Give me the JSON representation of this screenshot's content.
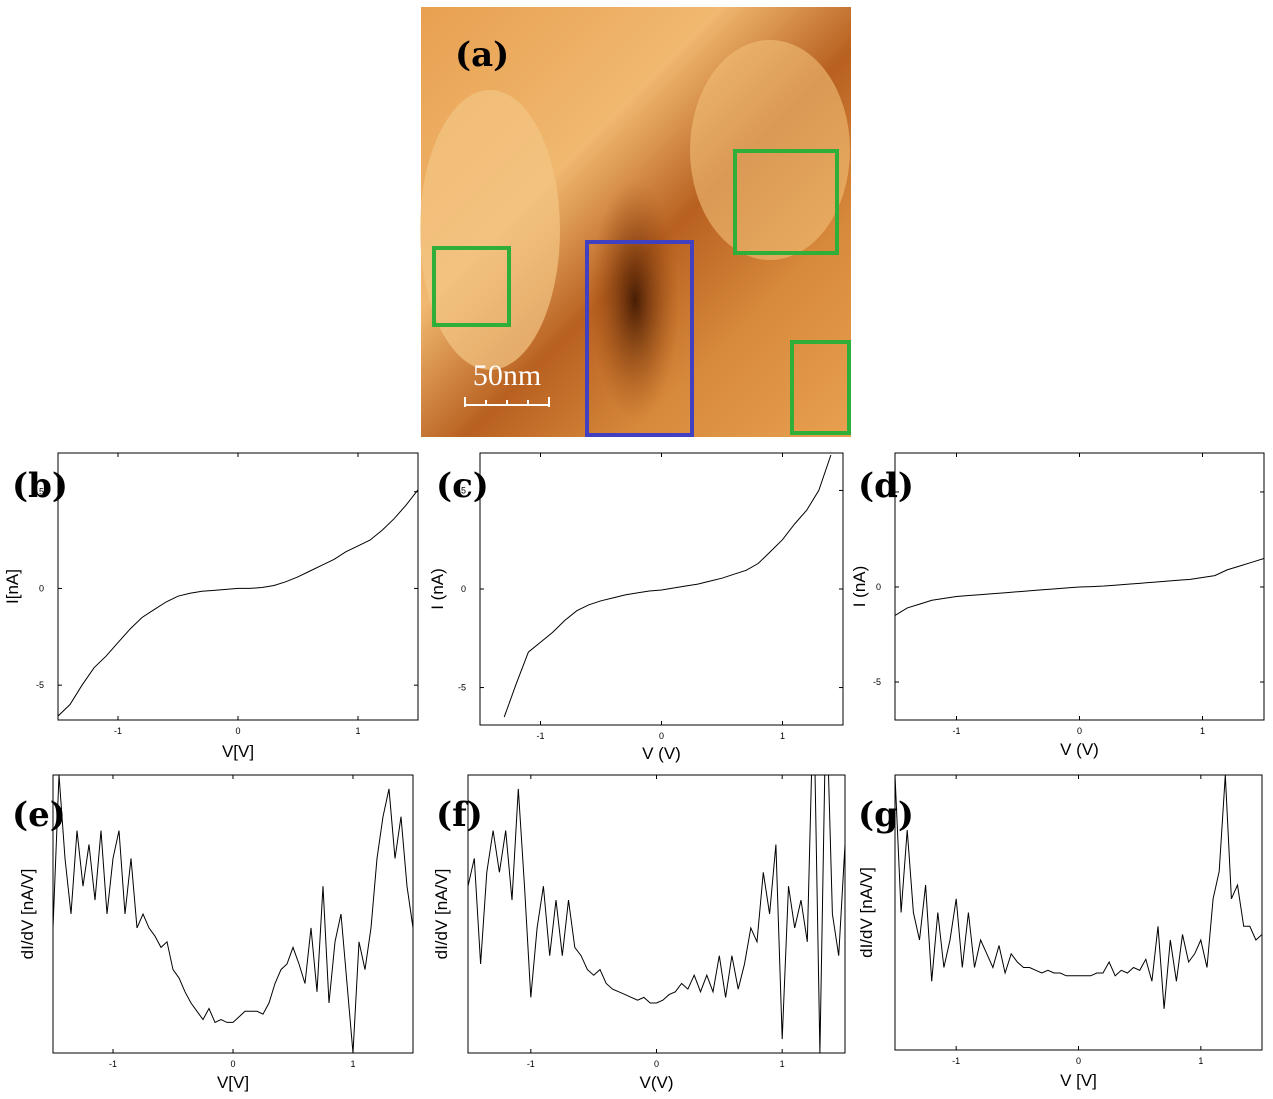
{
  "image": {
    "label": "(a)",
    "scale_bar": "50nm"
  },
  "chart_data": [
    {
      "type": "line",
      "label": "(b)",
      "x_label": "V[V]",
      "y_label": "I[nA]",
      "xlim": [
        -1.5,
        1.5
      ],
      "xticks": [
        -1,
        0,
        1
      ],
      "ylim": [
        -6.8,
        7
      ],
      "yticks": [
        -5,
        0,
        5
      ],
      "series": [
        {
          "color": "#000000",
          "x": [
            -1.5,
            -1.4,
            -1.3,
            -1.2,
            -1.1,
            -1.0,
            -0.9,
            -0.8,
            -0.7,
            -0.6,
            -0.5,
            -0.4,
            -0.3,
            -0.2,
            -0.1,
            0,
            0.1,
            0.2,
            0.3,
            0.4,
            0.5,
            0.6,
            0.7,
            0.8,
            0.9,
            1.0,
            1.1,
            1.2,
            1.3,
            1.4,
            1.5
          ],
          "values": [
            -6.6,
            -6.0,
            -5.0,
            -4.1,
            -3.5,
            -2.8,
            -2.1,
            -1.5,
            -1.1,
            -0.7,
            -0.4,
            -0.25,
            -0.15,
            -0.1,
            -0.05,
            0,
            0,
            0.05,
            0.15,
            0.35,
            0.6,
            0.9,
            1.2,
            1.5,
            1.9,
            2.2,
            2.5,
            3.0,
            3.6,
            4.3,
            5.1
          ]
        }
      ]
    },
    {
      "type": "line",
      "label": "(c)",
      "x_label": "V (V)",
      "y_label": "I (nA)",
      "xlim": [
        -1.5,
        1.5
      ],
      "xticks": [
        -1,
        0,
        1
      ],
      "ylim": [
        -6.9,
        6.9
      ],
      "yticks": [
        -5,
        0,
        5
      ],
      "series": [
        {
          "color": "#000000",
          "x": [
            -1.5,
            -1.4,
            -1.3,
            -1.2,
            -1.1,
            -1.0,
            -0.9,
            -0.8,
            -0.7,
            -0.6,
            -0.5,
            -0.4,
            -0.3,
            -0.2,
            -0.1,
            0,
            0.1,
            0.2,
            0.3,
            0.4,
            0.5,
            0.6,
            0.7,
            0.8,
            0.9,
            1.0,
            1.1,
            1.2,
            1.3,
            1.4,
            1.5
          ],
          "values": [
            null,
            null,
            -6.5,
            -4.8,
            -3.2,
            -2.7,
            -2.2,
            -1.6,
            -1.1,
            -0.8,
            -0.6,
            -0.45,
            -0.3,
            -0.2,
            -0.1,
            -0.05,
            0.05,
            0.15,
            0.25,
            0.4,
            0.55,
            0.75,
            0.95,
            1.3,
            1.9,
            2.5,
            3.3,
            4.0,
            5.0,
            6.8,
            null
          ]
        }
      ]
    },
    {
      "type": "line",
      "label": "(d)",
      "x_label": "V (V)",
      "y_label": "I (nA)",
      "xlim": [
        -1.5,
        1.5
      ],
      "xticks": [
        -1,
        0,
        1
      ],
      "ylim": [
        -7,
        7.05
      ],
      "yticks": [
        -5,
        0,
        5
      ],
      "series": [
        {
          "color": "#000000",
          "x": [
            -1.5,
            -1.4,
            -1.3,
            -1.2,
            -1.1,
            -1.0,
            -0.9,
            -0.8,
            -0.7,
            -0.6,
            -0.5,
            -0.4,
            -0.3,
            -0.2,
            -0.1,
            0,
            0.1,
            0.2,
            0.3,
            0.4,
            0.5,
            0.6,
            0.7,
            0.8,
            0.9,
            1.0,
            1.1,
            1.2,
            1.3,
            1.4,
            1.5
          ],
          "values": [
            -1.5,
            -1.1,
            -0.9,
            -0.7,
            -0.6,
            -0.5,
            -0.45,
            -0.4,
            -0.35,
            -0.3,
            -0.25,
            -0.2,
            -0.15,
            -0.1,
            -0.05,
            0,
            0.02,
            0.05,
            0.1,
            0.15,
            0.2,
            0.25,
            0.3,
            0.35,
            0.4,
            0.5,
            0.6,
            0.9,
            1.1,
            1.3,
            1.5
          ]
        }
      ]
    },
    {
      "type": "line",
      "label": "(e)",
      "x_label": "V[V]",
      "y_label": "dI/dV [nA/V]",
      "xlim": [
        -1.5,
        1.5
      ],
      "xticks": [
        -1,
        0,
        1
      ],
      "ylim": [
        0,
        10
      ],
      "series": [
        {
          "color": "#000000",
          "x": [
            -1.5,
            -1.45,
            -1.4,
            -1.35,
            -1.3,
            -1.25,
            -1.2,
            -1.15,
            -1.1,
            -1.05,
            -1.0,
            -0.95,
            -0.9,
            -0.85,
            -0.8,
            -0.75,
            -0.7,
            -0.65,
            -0.6,
            -0.55,
            -0.5,
            -0.45,
            -0.4,
            -0.35,
            -0.3,
            -0.25,
            -0.2,
            -0.15,
            -0.1,
            -0.05,
            0,
            0.05,
            0.1,
            0.15,
            0.2,
            0.25,
            0.3,
            0.35,
            0.4,
            0.45,
            0.5,
            0.55,
            0.6,
            0.65,
            0.7,
            0.75,
            0.8,
            0.85,
            0.9,
            0.95,
            1.0,
            1.05,
            1.1,
            1.15,
            1.2,
            1.25,
            1.3,
            1.35,
            1.4,
            1.45,
            1.5
          ],
          "values": [
            4.5,
            10,
            7,
            5,
            8,
            6,
            7.5,
            5.5,
            8,
            5,
            7,
            8,
            5,
            7,
            4.5,
            5,
            4.5,
            4.2,
            3.8,
            4,
            3,
            2.7,
            2.2,
            1.8,
            1.5,
            1.2,
            1.6,
            1.1,
            1.2,
            1.1,
            1.1,
            1.3,
            1.5,
            1.5,
            1.5,
            1.4,
            1.8,
            2.5,
            3,
            3.2,
            3.8,
            3.2,
            2.5,
            4.5,
            2.2,
            6,
            1.8,
            4,
            5,
            2.5,
            0,
            4,
            3,
            4.5,
            7,
            8.5,
            9.5,
            7,
            8.5,
            6,
            4.5
          ]
        }
      ]
    },
    {
      "type": "line",
      "label": "(f)",
      "x_label": "V(V)",
      "y_label": "dI/dV [nA/V]",
      "xlim": [
        -1.5,
        1.5
      ],
      "xticks": [
        -1,
        0,
        1
      ],
      "ylim": [
        0,
        10
      ],
      "series": [
        {
          "color": "#000000",
          "x": [
            -1.5,
            -1.45,
            -1.4,
            -1.35,
            -1.3,
            -1.25,
            -1.2,
            -1.15,
            -1.1,
            -1.05,
            -1.0,
            -0.95,
            -0.9,
            -0.85,
            -0.8,
            -0.75,
            -0.7,
            -0.65,
            -0.6,
            -0.55,
            -0.5,
            -0.45,
            -0.4,
            -0.35,
            -0.3,
            -0.25,
            -0.2,
            -0.15,
            -0.1,
            -0.05,
            0,
            0.05,
            0.1,
            0.15,
            0.2,
            0.25,
            0.3,
            0.35,
            0.4,
            0.45,
            0.5,
            0.55,
            0.6,
            0.65,
            0.7,
            0.75,
            0.8,
            0.85,
            0.9,
            0.95,
            1.0,
            1.05,
            1.1,
            1.15,
            1.2,
            1.25,
            1.3,
            1.35,
            1.4,
            1.45,
            1.5
          ],
          "values": [
            6,
            7,
            3.2,
            6.5,
            8,
            6.5,
            8,
            5.5,
            9.5,
            6,
            2,
            4.5,
            6,
            3.5,
            5.5,
            3.5,
            5.5,
            3.8,
            3.5,
            3,
            2.8,
            3,
            2.5,
            2.3,
            2.2,
            2.1,
            2,
            1.9,
            2,
            1.8,
            1.8,
            1.9,
            2.1,
            2.2,
            2.5,
            2.3,
            2.8,
            2.2,
            2.8,
            2.2,
            3.5,
            2,
            3.5,
            2.3,
            3.2,
            4.5,
            4,
            6.5,
            5,
            7.5,
            0.5,
            6,
            4.5,
            5.5,
            4,
            13,
            0,
            13,
            5,
            3.5,
            7.5
          ]
        }
      ]
    },
    {
      "type": "line",
      "label": "(g)",
      "x_label": "V [V]",
      "y_label": "dI/dV [nA/V]",
      "xlim": [
        -1.5,
        1.5
      ],
      "xticks": [
        -1,
        0,
        1
      ],
      "ylim": [
        0,
        10
      ],
      "series": [
        {
          "color": "#000000",
          "x": [
            -1.5,
            -1.45,
            -1.4,
            -1.35,
            -1.3,
            -1.25,
            -1.2,
            -1.15,
            -1.1,
            -1.05,
            -1.0,
            -0.95,
            -0.9,
            -0.85,
            -0.8,
            -0.75,
            -0.7,
            -0.65,
            -0.6,
            -0.55,
            -0.5,
            -0.45,
            -0.4,
            -0.35,
            -0.3,
            -0.25,
            -0.2,
            -0.15,
            -0.1,
            -0.05,
            0,
            0.05,
            0.1,
            0.15,
            0.2,
            0.25,
            0.3,
            0.35,
            0.4,
            0.45,
            0.5,
            0.55,
            0.6,
            0.65,
            0.7,
            0.75,
            0.8,
            0.85,
            0.9,
            0.95,
            1.0,
            1.05,
            1.1,
            1.15,
            1.2,
            1.25,
            1.3,
            1.35,
            1.4,
            1.45,
            1.5
          ],
          "values": [
            10,
            5,
            8,
            5,
            4,
            6,
            2.5,
            5,
            3,
            4,
            5.5,
            3,
            5,
            3,
            4,
            3.5,
            3,
            3.8,
            2.8,
            3.5,
            3.2,
            3,
            3,
            2.9,
            2.8,
            2.9,
            2.8,
            2.8,
            2.7,
            2.7,
            2.7,
            2.7,
            2.7,
            2.8,
            2.8,
            3.2,
            2.7,
            2.9,
            2.8,
            3,
            2.9,
            3.3,
            2.5,
            4.5,
            1.5,
            4,
            2.5,
            4.2,
            3.2,
            3.5,
            4,
            3,
            5.5,
            6.5,
            10,
            5.5,
            6,
            4.5,
            4.5,
            4,
            4.2
          ]
        }
      ]
    }
  ]
}
